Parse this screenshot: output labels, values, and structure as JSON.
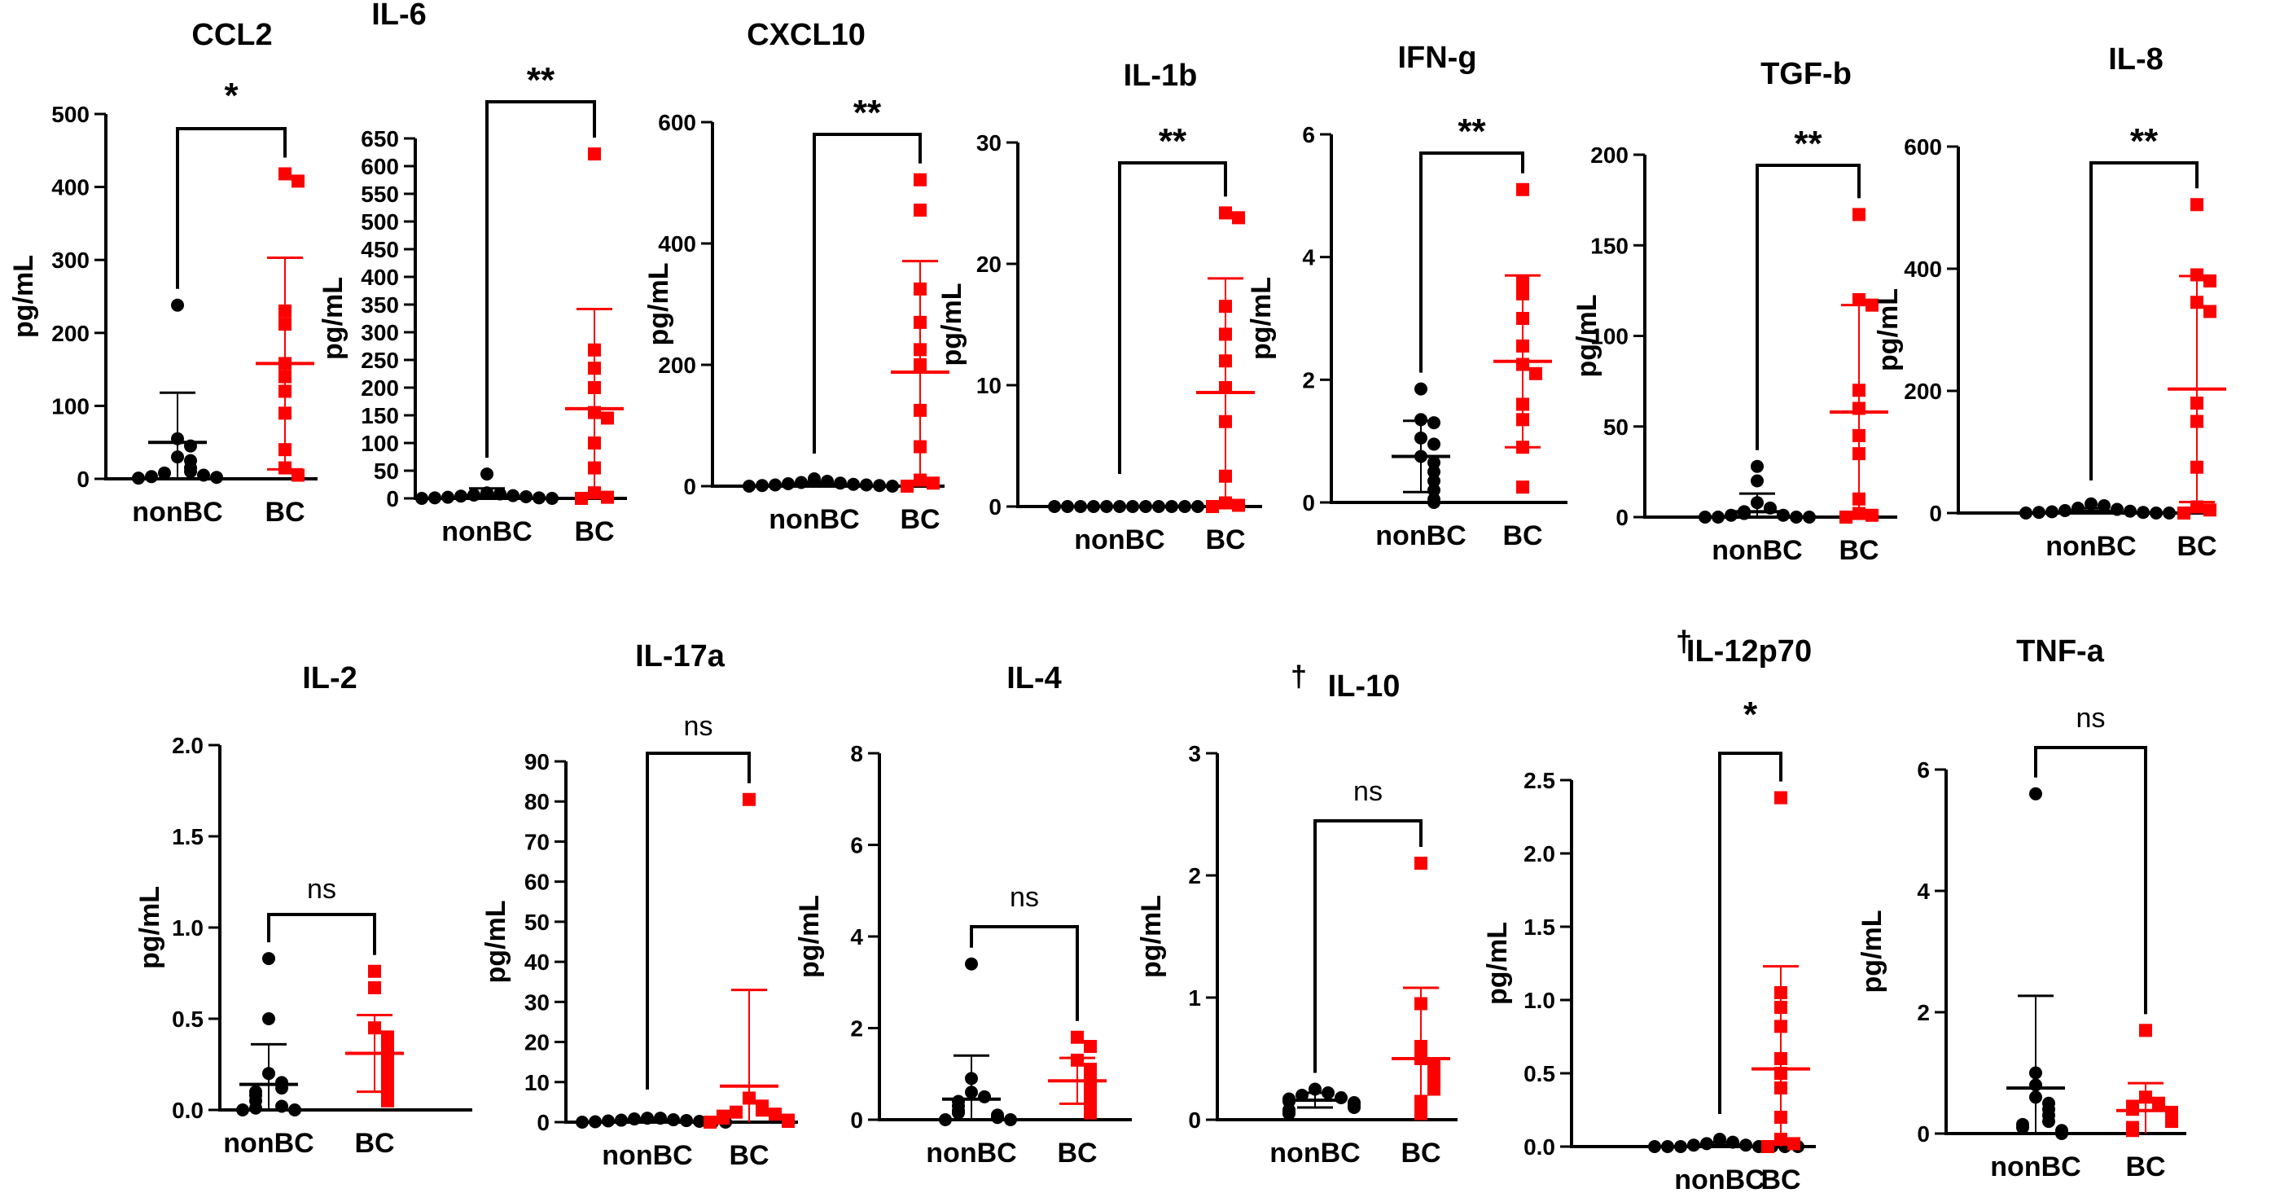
{
  "chart_data": [
    {
      "type": "scatter",
      "title": "CCL2",
      "ylabel": "pg/mL",
      "categories": [
        "nonBC",
        "BC"
      ],
      "ylim": [
        0,
        500
      ],
      "yticks": [
        "0",
        "100",
        "200",
        "300",
        "400",
        "500"
      ],
      "significance": "*",
      "series": [
        {
          "name": "nonBC",
          "color": "#000000",
          "marker": "circle",
          "mean": 50,
          "sd": 68,
          "values": [
            238,
            55,
            45,
            30,
            25,
            15,
            10,
            8,
            5,
            3,
            2,
            1
          ]
        },
        {
          "name": "BC",
          "color": "#ff0000",
          "marker": "square",
          "mean": 158,
          "sd": 145,
          "values": [
            418,
            408,
            230,
            212,
            158,
            140,
            120,
            90,
            40,
            15,
            5
          ]
        }
      ]
    },
    {
      "type": "scatter",
      "title": "IL-6",
      "ylabel": "pg/mL",
      "categories": [
        "nonBC",
        "BC"
      ],
      "ylim": [
        0,
        650
      ],
      "yticks": [
        "0",
        "50",
        "100",
        "150",
        "200",
        "250",
        "300",
        "350",
        "400",
        "450",
        "500",
        "550",
        "600",
        "650"
      ],
      "significance": "**",
      "series": [
        {
          "name": "nonBC",
          "color": "#000000",
          "marker": "circle",
          "mean": 5,
          "sd": 13,
          "values": [
            44,
            10,
            8,
            6,
            5,
            4,
            3,
            2,
            1,
            1,
            0,
            0
          ]
        },
        {
          "name": "BC",
          "color": "#ff0000",
          "marker": "square",
          "mean": 162,
          "sd": 180,
          "values": [
            622,
            268,
            235,
            200,
            155,
            145,
            100,
            55,
            10,
            2,
            0
          ]
        }
      ]
    },
    {
      "type": "scatter",
      "title": "CXCL10",
      "ylabel": "pg/mL",
      "categories": [
        "nonBC",
        "BC"
      ],
      "ylim": [
        0,
        600
      ],
      "yticks": [
        "0",
        "200",
        "400",
        "600"
      ],
      "significance": "**",
      "series": [
        {
          "name": "nonBC",
          "color": "#000000",
          "marker": "circle",
          "mean": 3,
          "sd": 4,
          "values": [
            12,
            8,
            6,
            5,
            4,
            3,
            2,
            2,
            1,
            1,
            0,
            0
          ]
        },
        {
          "name": "BC",
          "color": "#ff0000",
          "marker": "square",
          "mean": 188,
          "sd": 183,
          "values": [
            505,
            455,
            325,
            270,
            225,
            200,
            125,
            65,
            10,
            5,
            0
          ]
        }
      ]
    },
    {
      "type": "scatter",
      "title": "IL-1b",
      "ylabel": "pg/mL",
      "categories": [
        "nonBC",
        "BC"
      ],
      "ylim": [
        0,
        30
      ],
      "yticks": [
        "0",
        "10",
        "20",
        "30"
      ],
      "significance": "**",
      "series": [
        {
          "name": "nonBC",
          "color": "#000000",
          "marker": "circle",
          "mean": 0,
          "sd": 0,
          "values": [
            0,
            0,
            0,
            0,
            0,
            0,
            0,
            0,
            0,
            0,
            0,
            0
          ]
        },
        {
          "name": "BC",
          "color": "#ff0000",
          "marker": "square",
          "mean": 9.4,
          "sd": 9.4,
          "values": [
            24.2,
            23.8,
            16.5,
            14.2,
            12,
            9.8,
            7,
            2.5,
            0.3,
            0.1,
            0
          ]
        }
      ]
    },
    {
      "type": "scatter",
      "title": "IFN-g",
      "ylabel": "pg/mL",
      "categories": [
        "nonBC",
        "BC"
      ],
      "ylim": [
        0,
        6
      ],
      "yticks": [
        "0",
        "2",
        "4",
        "6"
      ],
      "significance": "**",
      "series": [
        {
          "name": "nonBC",
          "color": "#000000",
          "marker": "circle",
          "mean": 0.75,
          "sd": 0.58,
          "values": [
            1.85,
            1.35,
            1.3,
            1.05,
            0.95,
            0.75,
            0.65,
            0.5,
            0.35,
            0.2,
            0.05,
            0
          ]
        },
        {
          "name": "BC",
          "color": "#ff0000",
          "marker": "square",
          "mean": 2.3,
          "sd": 1.4,
          "values": [
            5.1,
            3.6,
            3.4,
            3,
            2.55,
            2.25,
            2.1,
            1.6,
            1.35,
            0.9,
            0.25
          ]
        }
      ]
    },
    {
      "type": "scatter",
      "title": "TGF-b",
      "ylabel": "pg/mL",
      "categories": [
        "nonBC",
        "BC"
      ],
      "ylim": [
        0,
        200
      ],
      "yticks": [
        "0",
        "50",
        "100",
        "150",
        "200"
      ],
      "significance": "**",
      "series": [
        {
          "name": "nonBC",
          "color": "#000000",
          "marker": "circle",
          "mean": 3,
          "sd": 10,
          "values": [
            28,
            20,
            8,
            5,
            3,
            2,
            1,
            1,
            0,
            0,
            0,
            0
          ]
        },
        {
          "name": "BC",
          "color": "#ff0000",
          "marker": "square",
          "mean": 58,
          "sd": 59,
          "values": [
            167,
            120,
            117,
            70,
            60,
            45,
            35,
            10,
            2,
            1,
            0
          ]
        }
      ]
    },
    {
      "type": "scatter",
      "title": "IL-8",
      "ylabel": "pg/mL",
      "categories": [
        "nonBC",
        "BC"
      ],
      "ylim": [
        0,
        600
      ],
      "yticks": [
        "0",
        "200",
        "400",
        "600"
      ],
      "significance": "**",
      "series": [
        {
          "name": "nonBC",
          "color": "#000000",
          "marker": "circle",
          "mean": 3,
          "sd": 5,
          "values": [
            15,
            12,
            8,
            6,
            4,
            3,
            2,
            1,
            1,
            0,
            0,
            0
          ]
        },
        {
          "name": "BC",
          "color": "#ff0000",
          "marker": "square",
          "mean": 203,
          "sd": 185,
          "values": [
            505,
            390,
            380,
            345,
            330,
            180,
            150,
            75,
            10,
            5,
            0
          ]
        }
      ]
    },
    {
      "type": "scatter",
      "title": "IL-2",
      "ylabel": "pg/mL",
      "categories": [
        "nonBC",
        "BC"
      ],
      "ylim": [
        0,
        2.0
      ],
      "yticks": [
        "0.0",
        "0.5",
        "1.0",
        "1.5",
        "2.0"
      ],
      "significance": "ns",
      "series": [
        {
          "name": "nonBC",
          "color": "#000000",
          "marker": "circle",
          "mean": 0.14,
          "sd": 0.22,
          "values": [
            0.83,
            0.5,
            0.2,
            0.15,
            0.12,
            0.1,
            0.08,
            0.05,
            0.02,
            0.01,
            0,
            0
          ]
        },
        {
          "name": "BC",
          "color": "#ff0000",
          "marker": "square",
          "mean": 0.31,
          "sd": 0.21,
          "values": [
            0.76,
            0.67,
            0.45,
            0.4,
            0.35,
            0.3,
            0.25,
            0.2,
            0.15,
            0.1,
            0.05
          ]
        }
      ]
    },
    {
      "type": "scatter",
      "title": "IL-17a",
      "ylabel": "pg/mL",
      "categories": [
        "nonBC",
        "BC"
      ],
      "ylim": [
        0,
        90
      ],
      "yticks": [
        "0",
        "10",
        "20",
        "30",
        "40",
        "50",
        "60",
        "70",
        "80",
        "90"
      ],
      "significance": "ns",
      "series": [
        {
          "name": "nonBC",
          "color": "#000000",
          "marker": "circle",
          "mean": 0.5,
          "sd": 0.3,
          "values": [
            1,
            1,
            0.8,
            0.6,
            0.5,
            0.4,
            0.3,
            0.2,
            0.1,
            0,
            0,
            0
          ]
        },
        {
          "name": "BC",
          "color": "#ff0000",
          "marker": "square",
          "mean": 9,
          "sd": 24,
          "values": [
            80.5,
            6,
            4,
            3,
            2.5,
            2,
            1.5,
            1,
            0.5,
            0.2,
            0
          ]
        }
      ]
    },
    {
      "type": "scatter",
      "title": "IL-4",
      "ylabel": "pg/mL",
      "categories": [
        "nonBC",
        "BC"
      ],
      "ylim": [
        0,
        8
      ],
      "yticks": [
        "0",
        "2",
        "4",
        "6",
        "8"
      ],
      "significance": "ns",
      "series": [
        {
          "name": "nonBC",
          "color": "#000000",
          "marker": "circle",
          "mean": 0.45,
          "sd": 0.95,
          "values": [
            3.4,
            0.9,
            0.6,
            0.5,
            0.4,
            0.3,
            0.2,
            0.15,
            0.1,
            0.05,
            0,
            0
          ]
        },
        {
          "name": "BC",
          "color": "#ff0000",
          "marker": "square",
          "mean": 0.85,
          "sd": 0.5,
          "values": [
            1.8,
            1.6,
            1.3,
            1.1,
            1,
            0.85,
            0.7,
            0.6,
            0.45,
            0.3,
            0.15
          ]
        }
      ]
    },
    {
      "type": "scatter",
      "title": "IL-10",
      "title_prefix": "†",
      "ylabel": "pg/mL",
      "categories": [
        "nonBC",
        "BC"
      ],
      "ylim": [
        0,
        3
      ],
      "yticks": [
        "0",
        "1",
        "2",
        "3"
      ],
      "significance": "ns",
      "series": [
        {
          "name": "nonBC",
          "color": "#000000",
          "marker": "circle",
          "mean": 0.16,
          "sd": 0.06,
          "values": [
            0.25,
            0.22,
            0.2,
            0.18,
            0.17,
            0.15,
            0.14,
            0.12,
            0.1,
            0.08,
            0.06,
            0.05
          ]
        },
        {
          "name": "BC",
          "color": "#ff0000",
          "marker": "square",
          "mean": 0.5,
          "sd": 0.58,
          "values": [
            2.1,
            0.95,
            0.6,
            0.5,
            0.45,
            0.4,
            0.35,
            0.3,
            0.25,
            0.15,
            0.05
          ]
        }
      ]
    },
    {
      "type": "scatter",
      "title": "IL-12p70",
      "title_prefix": "†",
      "ylabel": "pg/mL",
      "categories": [
        "nonBC",
        "BC"
      ],
      "ylim": [
        0,
        2.5
      ],
      "yticks": [
        "0.0",
        "0.5",
        "1.0",
        "1.5",
        "2.0",
        "2.5"
      ],
      "significance": "*",
      "series": [
        {
          "name": "nonBC",
          "color": "#000000",
          "marker": "circle",
          "mean": 0.01,
          "sd": 0.02,
          "values": [
            0.05,
            0.03,
            0.02,
            0.01,
            0.01,
            0,
            0,
            0,
            0,
            0,
            0,
            0
          ]
        },
        {
          "name": "BC",
          "color": "#ff0000",
          "marker": "square",
          "mean": 0.53,
          "sd": 0.7,
          "values": [
            2.38,
            1.05,
            0.95,
            0.82,
            0.6,
            0.5,
            0.4,
            0.2,
            0.05,
            0.02,
            0
          ]
        }
      ]
    },
    {
      "type": "scatter",
      "title": "TNF-a",
      "ylabel": "pg/mL",
      "categories": [
        "nonBC",
        "BC"
      ],
      "ylim": [
        0,
        6
      ],
      "yticks": [
        "0",
        "2",
        "4",
        "6"
      ],
      "significance": "ns",
      "series": [
        {
          "name": "nonBC",
          "color": "#000000",
          "marker": "circle",
          "mean": 0.75,
          "sd": 1.52,
          "values": [
            5.6,
            1,
            0.8,
            0.6,
            0.5,
            0.4,
            0.3,
            0.2,
            0.15,
            0.1,
            0.05,
            0
          ]
        },
        {
          "name": "BC",
          "color": "#ff0000",
          "marker": "square",
          "mean": 0.38,
          "sd": 0.45,
          "values": [
            1.7,
            0.6,
            0.5,
            0.45,
            0.4,
            0.35,
            0.3,
            0.25,
            0.2,
            0.1,
            0.05
          ]
        }
      ]
    }
  ]
}
